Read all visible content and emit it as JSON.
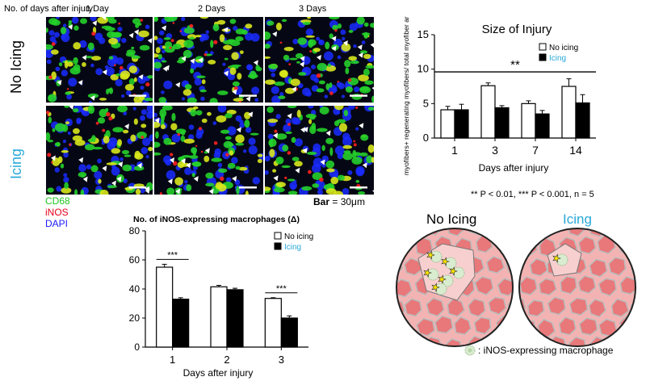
{
  "figure": {
    "column_header_prefix": "No. of days after injury:",
    "columns": [
      "1 Day",
      "2 Days",
      "3 Days"
    ],
    "rows": [
      "No Icing",
      "Icing"
    ],
    "stain_legend": [
      {
        "label": "CD68",
        "color": "#22c622"
      },
      {
        "label": "iNOS",
        "color": "#e6001a"
      },
      {
        "label": "DAPI",
        "color": "#1a1aff"
      }
    ],
    "scale_bar": {
      "label": "Bar",
      "value": "= 30μm"
    }
  },
  "colors": {
    "no_icing": "#000000",
    "icing": "#29a9d8",
    "muscle_fill": "#e8787a",
    "muscle_bg": "#f4b3b3"
  },
  "significance_note": "** P < 0.01, *** P < 0.001, n = 5",
  "schematic": {
    "titles": [
      "No Icing",
      "Icing"
    ],
    "legend": ": iNOS-expressing  macrophage"
  },
  "chart_data": [
    {
      "type": "bar",
      "title": "Size of Injury",
      "ylabel": "Necrotic myofibers+ regenerating myofibers/ total myofiber area (%)",
      "xlabel": "Days after injury",
      "categories": [
        "1",
        "3",
        "7",
        "14"
      ],
      "ylim": [
        0,
        15
      ],
      "yticks": [
        "0",
        "5",
        "10",
        "15"
      ],
      "series": [
        {
          "name": "No icing",
          "values": [
            4.1,
            7.6,
            5.0,
            7.5
          ],
          "errors": [
            0.5,
            0.4,
            0.4,
            1.1
          ]
        },
        {
          "name": "Icing",
          "values": [
            4.1,
            4.4,
            3.5,
            5.1
          ],
          "errors": [
            0.8,
            0.3,
            0.5,
            1.2
          ]
        }
      ],
      "annotations": [
        "**"
      ],
      "legend_position": "top-right",
      "grid": false
    },
    {
      "type": "bar",
      "title": "No. of iNOS-expressing  macrophages (Δ)",
      "ylabel": "",
      "xlabel": "Days after injury",
      "categories": [
        "1",
        "2",
        "3"
      ],
      "ylim": [
        0,
        80
      ],
      "yticks": [
        "0",
        "20",
        "40",
        "60",
        "80"
      ],
      "series": [
        {
          "name": "No icing",
          "values": [
            55,
            41.5,
            33.5
          ],
          "errors": [
            2,
            1,
            0.5
          ]
        },
        {
          "name": "Icing",
          "values": [
            33,
            39.5,
            20
          ],
          "errors": [
            1,
            1,
            1.5
          ]
        }
      ],
      "annotations": [
        "***",
        "",
        "***"
      ],
      "legend_position": "top-right",
      "grid": false
    }
  ]
}
